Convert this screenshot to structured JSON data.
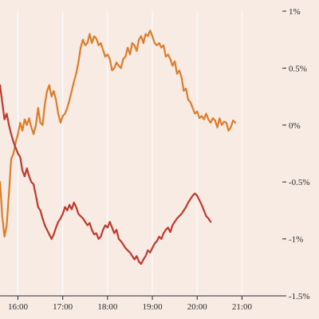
{
  "chart_data": {
    "type": "line",
    "title": "",
    "xlabel": "",
    "ylabel": "",
    "y_axis_side": "right",
    "grid": true,
    "grid_orientation": "vertical",
    "xlim": [
      15.6,
      21.9
    ],
    "ylim": [
      -1.5,
      1.0
    ],
    "x_ticks": [
      {
        "value": 16,
        "label": "16:00"
      },
      {
        "value": 17,
        "label": "17:00"
      },
      {
        "value": 18,
        "label": "18:00"
      },
      {
        "value": 19,
        "label": "19:00"
      },
      {
        "value": 20,
        "label": "20:00"
      },
      {
        "value": 21,
        "label": "21:00"
      }
    ],
    "y_ticks": [
      {
        "value": 1.0,
        "label": "1%"
      },
      {
        "value": 0.5,
        "label": "0.5%"
      },
      {
        "value": 0.0,
        "label": "0%"
      },
      {
        "value": -0.5,
        "label": "-0.5%"
      },
      {
        "value": -1.0,
        "label": "-1%"
      },
      {
        "value": -1.5,
        "label": "-1.5%"
      }
    ],
    "series": [
      {
        "color": "#e07b2a",
        "points": [
          [
            15.6,
            -0.5
          ],
          [
            15.65,
            -0.8
          ],
          [
            15.7,
            -0.98
          ],
          [
            15.75,
            -0.88
          ],
          [
            15.8,
            -0.6
          ],
          [
            15.85,
            -0.3
          ],
          [
            15.9,
            -0.25
          ],
          [
            15.95,
            -0.15
          ],
          [
            16.0,
            -0.08
          ],
          [
            16.05,
            0.02
          ],
          [
            16.1,
            -0.05
          ],
          [
            16.15,
            0.05
          ],
          [
            16.2,
            0.0
          ],
          [
            16.25,
            0.06
          ],
          [
            16.3,
            -0.02
          ],
          [
            16.35,
            -0.08
          ],
          [
            16.4,
            0.0
          ],
          [
            16.45,
            0.15
          ],
          [
            16.5,
            0.02
          ],
          [
            16.55,
            0.0
          ],
          [
            16.6,
            0.18
          ],
          [
            16.65,
            0.3
          ],
          [
            16.7,
            0.35
          ],
          [
            16.75,
            0.25
          ],
          [
            16.8,
            0.3
          ],
          [
            16.85,
            0.22
          ],
          [
            16.9,
            0.1
          ],
          [
            16.95,
            0.02
          ],
          [
            17.0,
            0.08
          ],
          [
            17.05,
            0.1
          ],
          [
            17.1,
            0.15
          ],
          [
            17.15,
            0.22
          ],
          [
            17.2,
            0.3
          ],
          [
            17.25,
            0.38
          ],
          [
            17.3,
            0.45
          ],
          [
            17.35,
            0.55
          ],
          [
            17.4,
            0.68
          ],
          [
            17.45,
            0.75
          ],
          [
            17.5,
            0.7
          ],
          [
            17.55,
            0.72
          ],
          [
            17.6,
            0.8
          ],
          [
            17.65,
            0.72
          ],
          [
            17.7,
            0.78
          ],
          [
            17.75,
            0.76
          ],
          [
            17.8,
            0.7
          ],
          [
            17.85,
            0.72
          ],
          [
            17.9,
            0.66
          ],
          [
            17.95,
            0.6
          ],
          [
            18.0,
            0.62
          ],
          [
            18.05,
            0.58
          ],
          [
            18.1,
            0.48
          ],
          [
            18.15,
            0.5
          ],
          [
            18.2,
            0.55
          ],
          [
            18.25,
            0.52
          ],
          [
            18.3,
            0.5
          ],
          [
            18.35,
            0.58
          ],
          [
            18.4,
            0.6
          ],
          [
            18.45,
            0.68
          ],
          [
            18.5,
            0.62
          ],
          [
            18.55,
            0.72
          ],
          [
            18.6,
            0.7
          ],
          [
            18.65,
            0.65
          ],
          [
            18.7,
            0.75
          ],
          [
            18.75,
            0.78
          ],
          [
            18.8,
            0.72
          ],
          [
            18.85,
            0.8
          ],
          [
            18.9,
            0.78
          ],
          [
            18.95,
            0.83
          ],
          [
            19.0,
            0.78
          ],
          [
            19.05,
            0.72
          ],
          [
            19.1,
            0.7
          ],
          [
            19.15,
            0.72
          ],
          [
            19.2,
            0.68
          ],
          [
            19.25,
            0.7
          ],
          [
            19.3,
            0.6
          ],
          [
            19.35,
            0.62
          ],
          [
            19.4,
            0.58
          ],
          [
            19.45,
            0.52
          ],
          [
            19.5,
            0.56
          ],
          [
            19.55,
            0.45
          ],
          [
            19.6,
            0.48
          ],
          [
            19.65,
            0.42
          ],
          [
            19.7,
            0.3
          ],
          [
            19.75,
            0.32
          ],
          [
            19.8,
            0.22
          ],
          [
            19.85,
            0.2
          ],
          [
            19.9,
            0.15
          ],
          [
            19.95,
            0.1
          ],
          [
            20.0,
            0.12
          ],
          [
            20.05,
            0.06
          ],
          [
            20.1,
            0.08
          ],
          [
            20.15,
            0.05
          ],
          [
            20.2,
            0.1
          ],
          [
            20.25,
            0.05
          ],
          [
            20.3,
            0.02
          ],
          [
            20.35,
            0.06
          ],
          [
            20.4,
            0.04
          ],
          [
            20.45,
            -0.02
          ],
          [
            20.5,
            0.06
          ],
          [
            20.55,
            0.0
          ],
          [
            20.6,
            0.03
          ],
          [
            20.65,
            0.02
          ],
          [
            20.7,
            -0.05
          ],
          [
            20.75,
            -0.02
          ],
          [
            20.8,
            0.04
          ],
          [
            20.85,
            0.02
          ]
        ]
      },
      {
        "color": "#c0392b",
        "points": [
          [
            15.6,
            0.35
          ],
          [
            15.65,
            0.2
          ],
          [
            15.7,
            0.05
          ],
          [
            15.75,
            0.1
          ],
          [
            15.8,
            0.0
          ],
          [
            15.85,
            -0.08
          ],
          [
            15.9,
            -0.15
          ],
          [
            15.95,
            -0.2
          ],
          [
            16.0,
            -0.25
          ],
          [
            16.05,
            -0.28
          ],
          [
            16.1,
            -0.4
          ],
          [
            16.15,
            -0.45
          ],
          [
            16.2,
            -0.38
          ],
          [
            16.25,
            -0.45
          ],
          [
            16.3,
            -0.5
          ],
          [
            16.35,
            -0.52
          ],
          [
            16.4,
            -0.62
          ],
          [
            16.45,
            -0.72
          ],
          [
            16.5,
            -0.75
          ],
          [
            16.55,
            -0.82
          ],
          [
            16.6,
            -0.88
          ],
          [
            16.65,
            -0.92
          ],
          [
            16.7,
            -0.96
          ],
          [
            16.75,
            -1.0
          ],
          [
            16.8,
            -0.96
          ],
          [
            16.85,
            -0.9
          ],
          [
            16.9,
            -0.85
          ],
          [
            16.95,
            -0.82
          ],
          [
            17.0,
            -0.78
          ],
          [
            17.05,
            -0.72
          ],
          [
            17.1,
            -0.75
          ],
          [
            17.15,
            -0.7
          ],
          [
            17.2,
            -0.74
          ],
          [
            17.25,
            -0.68
          ],
          [
            17.3,
            -0.72
          ],
          [
            17.35,
            -0.78
          ],
          [
            17.4,
            -0.8
          ],
          [
            17.45,
            -0.82
          ],
          [
            17.5,
            -0.85
          ],
          [
            17.55,
            -0.88
          ],
          [
            17.6,
            -0.86
          ],
          [
            17.65,
            -0.92
          ],
          [
            17.7,
            -0.96
          ],
          [
            17.75,
            -0.95
          ],
          [
            17.8,
            -1.0
          ],
          [
            17.85,
            -0.98
          ],
          [
            17.9,
            -0.92
          ],
          [
            17.95,
            -0.88
          ],
          [
            18.0,
            -0.9
          ],
          [
            18.05,
            -0.85
          ],
          [
            18.1,
            -0.9
          ],
          [
            18.15,
            -0.95
          ],
          [
            18.2,
            -0.92
          ],
          [
            18.25,
            -1.0
          ],
          [
            18.3,
            -1.02
          ],
          [
            18.35,
            -1.05
          ],
          [
            18.4,
            -1.08
          ],
          [
            18.45,
            -1.1
          ],
          [
            18.5,
            -1.12
          ],
          [
            18.55,
            -1.15
          ],
          [
            18.6,
            -1.18
          ],
          [
            18.65,
            -1.15
          ],
          [
            18.7,
            -1.2
          ],
          [
            18.75,
            -1.22
          ],
          [
            18.8,
            -1.18
          ],
          [
            18.85,
            -1.15
          ],
          [
            18.9,
            -1.1
          ],
          [
            18.95,
            -1.12
          ],
          [
            19.0,
            -1.08
          ],
          [
            19.05,
            -1.04
          ],
          [
            19.1,
            -1.02
          ],
          [
            19.15,
            -0.98
          ],
          [
            19.2,
            -1.0
          ],
          [
            19.25,
            -0.95
          ],
          [
            19.3,
            -0.92
          ],
          [
            19.35,
            -0.9
          ],
          [
            19.4,
            -0.94
          ],
          [
            19.45,
            -0.88
          ],
          [
            19.5,
            -0.85
          ],
          [
            19.55,
            -0.82
          ],
          [
            19.6,
            -0.8
          ],
          [
            19.65,
            -0.78
          ],
          [
            19.7,
            -0.75
          ],
          [
            19.75,
            -0.72
          ],
          [
            19.8,
            -0.68
          ],
          [
            19.85,
            -0.65
          ],
          [
            19.9,
            -0.62
          ],
          [
            19.95,
            -0.6
          ],
          [
            20.0,
            -0.62
          ],
          [
            20.05,
            -0.66
          ],
          [
            20.1,
            -0.7
          ],
          [
            20.15,
            -0.75
          ],
          [
            20.2,
            -0.8
          ],
          [
            20.25,
            -0.82
          ],
          [
            20.3,
            -0.85
          ]
        ]
      }
    ]
  }
}
